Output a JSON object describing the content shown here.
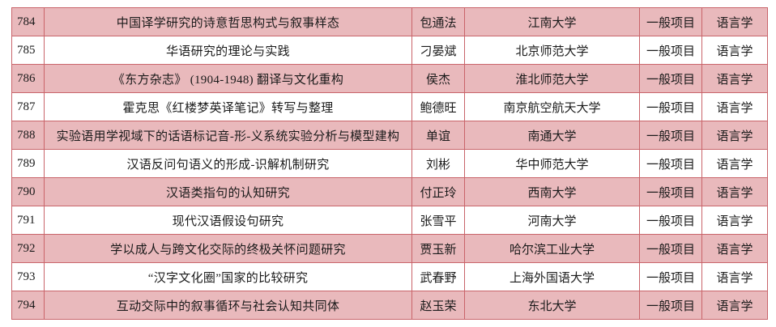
{
  "colors": {
    "row_highlight": "#e9b9bc",
    "row_plain": "#ffffff",
    "border": "#c9646a"
  },
  "rows": [
    {
      "no": "784",
      "title": "中国译学研究的诗意哲思构式与叙事样态",
      "leader": "包通法",
      "institution": "江南大学",
      "type": "一般项目",
      "discipline": "语言学"
    },
    {
      "no": "785",
      "title": "华语研究的理论与实践",
      "leader": "刁晏斌",
      "institution": "北京师范大学",
      "type": "一般项目",
      "discipline": "语言学"
    },
    {
      "no": "786",
      "title": "《东方杂志》 (1904-1948) 翻译与文化重构",
      "leader": "侯杰",
      "institution": "淮北师范大学",
      "type": "一般项目",
      "discipline": "语言学"
    },
    {
      "no": "787",
      "title": "霍克思《红楼梦英译笔记》转写与整理",
      "leader": "鲍德旺",
      "institution": "南京航空航天大学",
      "type": "一般项目",
      "discipline": "语言学"
    },
    {
      "no": "788",
      "title": "实验语用学视域下的话语标记音-形-义系统实验分析与模型建构",
      "leader": "单谊",
      "institution": "南通大学",
      "type": "一般项目",
      "discipline": "语言学"
    },
    {
      "no": "789",
      "title": "汉语反问句语义的形成-识解机制研究",
      "leader": "刘彬",
      "institution": "华中师范大学",
      "type": "一般项目",
      "discipline": "语言学"
    },
    {
      "no": "790",
      "title": "汉语类指句的认知研究",
      "leader": "付正玲",
      "institution": "西南大学",
      "type": "一般项目",
      "discipline": "语言学"
    },
    {
      "no": "791",
      "title": "现代汉语假设句研究",
      "leader": "张雪平",
      "institution": "河南大学",
      "type": "一般项目",
      "discipline": "语言学"
    },
    {
      "no": "792",
      "title": "学以成人与跨文化交际的终极关怀问题研究",
      "leader": "贾玉新",
      "institution": "哈尔滨工业大学",
      "type": "一般项目",
      "discipline": "语言学"
    },
    {
      "no": "793",
      "title": "“汉字文化圈”国家的比较研究",
      "leader": "武春野",
      "institution": "上海外国语大学",
      "type": "一般项目",
      "discipline": "语言学"
    },
    {
      "no": "794",
      "title": "互动交际中的叙事循环与社会认知共同体",
      "leader": "赵玉荣",
      "institution": "东北大学",
      "type": "一般项目",
      "discipline": "语言学"
    }
  ]
}
